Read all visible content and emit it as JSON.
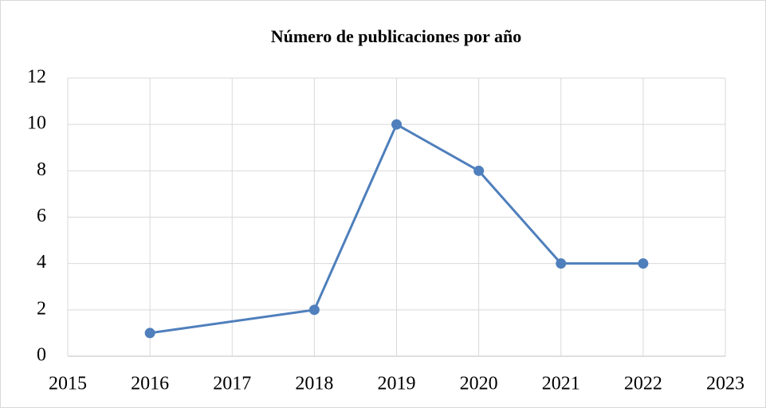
{
  "chart_data": {
    "type": "line",
    "title": "Número de publicaciones por año",
    "x": [
      2016,
      2018,
      2019,
      2020,
      2021,
      2022
    ],
    "series": [
      {
        "color": "#4f7fbc",
        "values": [
          1,
          2,
          10,
          8,
          4,
          4
        ]
      }
    ],
    "xlim": [
      2015,
      2023
    ],
    "xticks": [
      2015,
      2016,
      2017,
      2018,
      2019,
      2020,
      2021,
      2022,
      2023
    ],
    "ylim": [
      0,
      12
    ],
    "yticks": [
      0,
      2,
      4,
      6,
      8,
      10,
      12
    ],
    "grid": true
  }
}
